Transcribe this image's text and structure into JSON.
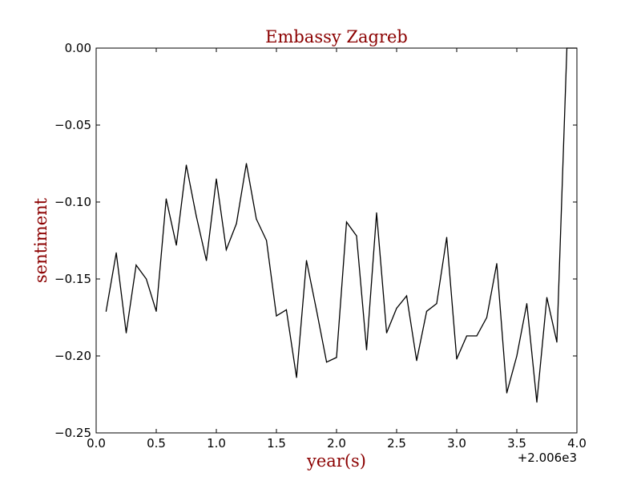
{
  "chart_data": {
    "type": "line",
    "title": "Embassy Zagreb",
    "xlabel": "year(s)",
    "ylabel": "sentiment",
    "x_offset_label": "+2.006e3",
    "xlim": [
      0.0,
      4.0
    ],
    "ylim": [
      -0.25,
      0.0
    ],
    "x_ticks": [
      0.0,
      0.5,
      1.0,
      1.5,
      2.0,
      2.5,
      3.0,
      3.5,
      4.0
    ],
    "x_tick_labels": [
      "0.0",
      "0.5",
      "1.0",
      "1.5",
      "2.0",
      "2.5",
      "3.0",
      "3.5",
      "4.0"
    ],
    "y_ticks": [
      0.0,
      -0.05,
      -0.1,
      -0.15,
      -0.2,
      -0.25
    ],
    "y_tick_labels": [
      "0.00",
      "−0.05",
      "−0.10",
      "−0.15",
      "−0.20",
      "−0.25"
    ],
    "grid": false,
    "series": [
      {
        "x": [
          0.083,
          0.167,
          0.25,
          0.333,
          0.417,
          0.5,
          0.583,
          0.667,
          0.75,
          0.833,
          0.917,
          1.0,
          1.083,
          1.167,
          1.25,
          1.333,
          1.417,
          1.5,
          1.583,
          1.667,
          1.75,
          1.833,
          1.917,
          2.0,
          2.083,
          2.167,
          2.25,
          2.333,
          2.417,
          2.5,
          2.583,
          2.667,
          2.75,
          2.833,
          2.917,
          3.0,
          3.083,
          3.167,
          3.25,
          3.333,
          3.417,
          3.5,
          3.583,
          3.667,
          3.75,
          3.833,
          3.917,
          4.0
        ],
        "y": [
          -0.171,
          -0.133,
          -0.185,
          -0.141,
          -0.15,
          -0.171,
          -0.098,
          -0.128,
          -0.076,
          -0.109,
          -0.138,
          -0.085,
          -0.131,
          -0.114,
          -0.075,
          -0.111,
          -0.125,
          -0.174,
          -0.17,
          -0.214,
          -0.138,
          -0.17,
          -0.204,
          -0.201,
          -0.113,
          -0.122,
          -0.196,
          -0.107,
          -0.185,
          -0.169,
          -0.161,
          -0.203,
          -0.171,
          -0.166,
          -0.123,
          -0.202,
          -0.187,
          -0.187,
          -0.175,
          -0.14,
          -0.224,
          -0.2,
          -0.166,
          -0.23,
          -0.162,
          -0.191,
          0.0,
          0.0
        ]
      }
    ],
    "colors": {
      "line": "#000000",
      "title": "#8b0000",
      "axis_label": "#8b0000",
      "axes": "#000000"
    }
  }
}
